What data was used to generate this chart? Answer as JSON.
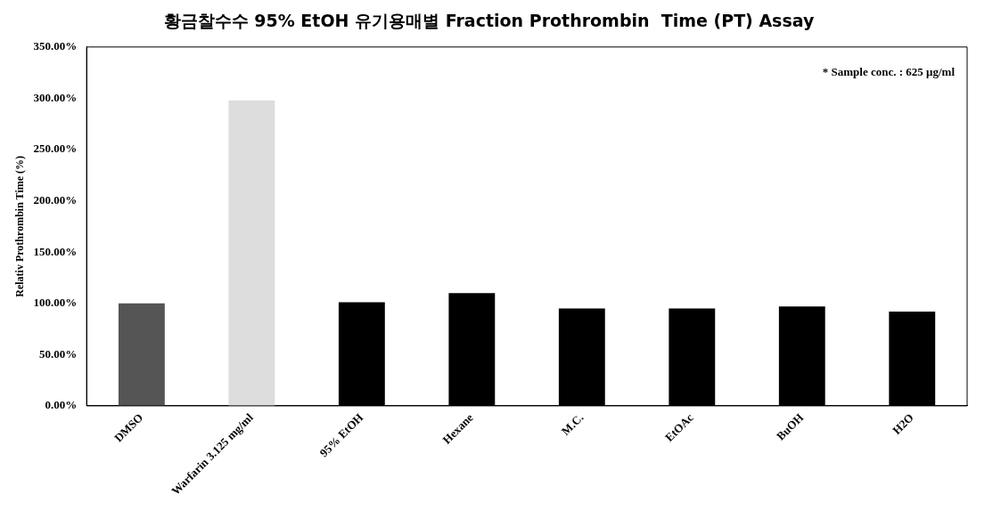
{
  "chart_data": {
    "type": "bar",
    "title": "황금찰수수 95% EtOH 유기용매별 Fraction Prothrombin  Time (PT) Assay",
    "ylabel": "Relativ Prothrombin Time (%)",
    "categories": [
      "DMSO",
      "Warfarin 3.125 mg/ml",
      "95% EtOH",
      "Hexane",
      "M.C.",
      "EtOAc",
      "BuOH",
      "H2O"
    ],
    "values": [
      100,
      298,
      101,
      110,
      95,
      95,
      97,
      92
    ],
    "colors": [
      "#555555",
      "#dddddd",
      "#000000",
      "#000000",
      "#000000",
      "#000000",
      "#000000",
      "#000000"
    ],
    "ylim": [
      0,
      350
    ],
    "yticks": [
      {
        "value": 0,
        "label": "0.00%"
      },
      {
        "value": 50,
        "label": "50.00%"
      },
      {
        "value": 100,
        "label": "100.00%"
      },
      {
        "value": 150,
        "label": "150.00%"
      },
      {
        "value": 200,
        "label": "200.00%"
      },
      {
        "value": 250,
        "label": "250.00%"
      },
      {
        "value": 300,
        "label": "300.00%"
      },
      {
        "value": 350,
        "label": "350.00%"
      }
    ],
    "annotations": [
      "* Sample conc. : 625 μg/ml"
    ],
    "grid": false,
    "legend": false
  }
}
